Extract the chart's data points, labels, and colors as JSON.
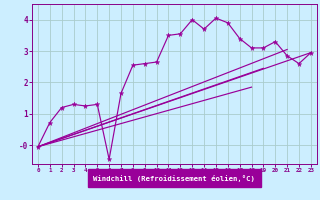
{
  "background_color": "#cceeff",
  "line_color": "#990099",
  "grid_color": "#aacccc",
  "tick_color": "#880088",
  "xlabel": "Windchill (Refroidissement éolien,°C)",
  "xlim": [
    -0.5,
    23.5
  ],
  "ylim": [
    -0.6,
    4.5
  ],
  "yticks": [
    0,
    1,
    2,
    3,
    4
  ],
  "ytick_labels": [
    "-0",
    "1",
    "2",
    "3",
    "4"
  ],
  "xticks": [
    0,
    1,
    2,
    3,
    4,
    5,
    6,
    7,
    8,
    9,
    10,
    11,
    12,
    13,
    14,
    15,
    16,
    17,
    18,
    19,
    20,
    21,
    22,
    23
  ],
  "line_main": {
    "x": [
      0,
      1,
      2,
      3,
      4,
      5,
      6,
      7,
      8,
      9,
      10,
      11,
      12,
      13,
      14,
      15,
      16,
      17,
      18,
      19,
      20,
      21,
      22,
      23
    ],
    "y": [
      -0.05,
      0.72,
      1.2,
      1.3,
      1.25,
      1.3,
      -0.45,
      1.65,
      2.55,
      2.6,
      2.65,
      3.5,
      3.55,
      4.0,
      3.7,
      4.05,
      3.9,
      3.4,
      3.1,
      3.1,
      3.3,
      2.85,
      2.6,
      2.95
    ]
  },
  "line_straight": [
    {
      "x": [
        0,
        18
      ],
      "y": [
        -0.05,
        1.85
      ]
    },
    {
      "x": [
        0,
        19
      ],
      "y": [
        -0.05,
        2.45
      ]
    },
    {
      "x": [
        0,
        21
      ],
      "y": [
        -0.05,
        3.05
      ]
    },
    {
      "x": [
        0,
        23
      ],
      "y": [
        -0.05,
        2.95
      ]
    }
  ]
}
